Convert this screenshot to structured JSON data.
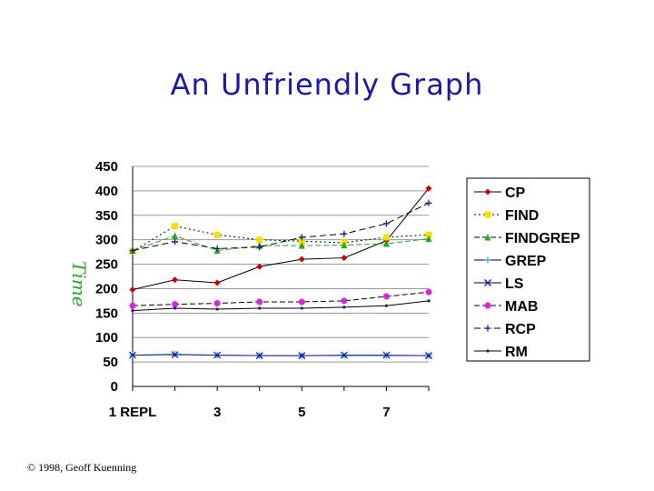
{
  "chart_data": {
    "type": "line",
    "title": "An Unfriendly Graph",
    "ylabel": "Time",
    "xlabel": "",
    "x": [
      1,
      2,
      3,
      4,
      5,
      6,
      7,
      8
    ],
    "x_tick_labels": [
      {
        "x": 1,
        "label": "1 REPL"
      },
      {
        "x": 3,
        "label": "3"
      },
      {
        "x": 5,
        "label": "5"
      },
      {
        "x": 7,
        "label": "7"
      }
    ],
    "ylim": [
      0,
      450
    ],
    "yticks": [
      0,
      50,
      100,
      150,
      200,
      250,
      300,
      350,
      400,
      450
    ],
    "grid": "horizontal",
    "legend_position": "right",
    "series": [
      {
        "name": "CP",
        "color": "#cc0000",
        "marker": "diamond",
        "dash": "",
        "values": [
          198,
          218,
          212,
          245,
          260,
          263,
          298,
          405
        ]
      },
      {
        "name": "FIND",
        "color": "#f5e000",
        "marker": "square",
        "dash": "2,3",
        "values": [
          276,
          328,
          310,
          300,
          297,
          294,
          305,
          310
        ]
      },
      {
        "name": "FINDGREP",
        "color": "#22aa22",
        "marker": "triangle",
        "dash": "6,3",
        "values": [
          278,
          308,
          278,
          288,
          288,
          289,
          292,
          302
        ]
      },
      {
        "name": "GREP",
        "color": "#22aacc",
        "marker": "plus",
        "dash": "",
        "values": [
          64,
          66,
          64,
          63,
          63,
          63,
          63,
          63
        ]
      },
      {
        "name": "LS",
        "color": "#1a1aa6",
        "marker": "x",
        "dash": "",
        "values": [
          64,
          65,
          64,
          63,
          63,
          64,
          64,
          63
        ]
      },
      {
        "name": "MAB",
        "color": "#dd22dd",
        "marker": "circle",
        "dash": "6,3",
        "values": [
          165,
          168,
          170,
          173,
          173,
          175,
          184,
          193
        ]
      },
      {
        "name": "RCP",
        "color": "#1a1a80",
        "marker": "plus",
        "dash": "7,4",
        "values": [
          278,
          296,
          282,
          285,
          305,
          312,
          333,
          375
        ]
      },
      {
        "name": "RM",
        "color": "#1a1a80",
        "marker": "dot",
        "dash": "",
        "values": [
          155,
          160,
          158,
          160,
          160,
          162,
          165,
          175
        ]
      }
    ]
  },
  "footer": {
    "copyright": "© 1998, Geoff Kuenning"
  }
}
